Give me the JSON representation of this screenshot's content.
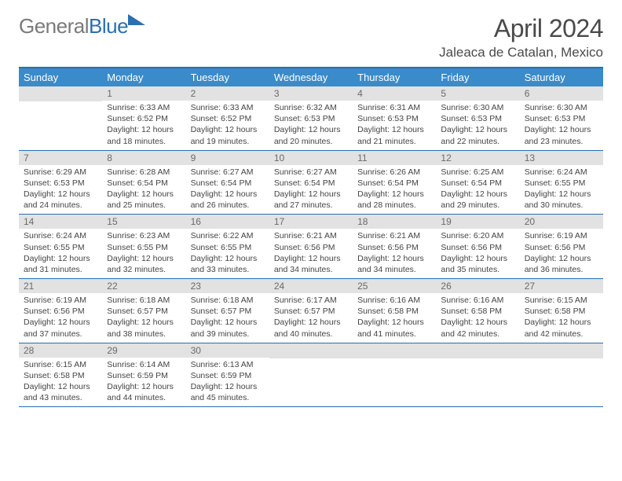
{
  "logo": {
    "text1": "General",
    "text2": "Blue"
  },
  "title": "April 2024",
  "location": "Jaleaca de Catalan, Mexico",
  "colors": {
    "header_bar": "#3a8bc9",
    "border": "#2a6fb0",
    "day_num_bg": "#e2e2e2",
    "day_num_fg": "#6a6a6a",
    "text": "#444444",
    "logo_gray": "#7a7a7a",
    "logo_blue": "#2a6fb0"
  },
  "weekdays": [
    "Sunday",
    "Monday",
    "Tuesday",
    "Wednesday",
    "Thursday",
    "Friday",
    "Saturday"
  ],
  "weeks": [
    [
      {
        "n": "",
        "sunrise": "",
        "sunset": "",
        "daylight": ""
      },
      {
        "n": "1",
        "sunrise": "Sunrise: 6:33 AM",
        "sunset": "Sunset: 6:52 PM",
        "daylight": "Daylight: 12 hours and 18 minutes."
      },
      {
        "n": "2",
        "sunrise": "Sunrise: 6:33 AM",
        "sunset": "Sunset: 6:52 PM",
        "daylight": "Daylight: 12 hours and 19 minutes."
      },
      {
        "n": "3",
        "sunrise": "Sunrise: 6:32 AM",
        "sunset": "Sunset: 6:53 PM",
        "daylight": "Daylight: 12 hours and 20 minutes."
      },
      {
        "n": "4",
        "sunrise": "Sunrise: 6:31 AM",
        "sunset": "Sunset: 6:53 PM",
        "daylight": "Daylight: 12 hours and 21 minutes."
      },
      {
        "n": "5",
        "sunrise": "Sunrise: 6:30 AM",
        "sunset": "Sunset: 6:53 PM",
        "daylight": "Daylight: 12 hours and 22 minutes."
      },
      {
        "n": "6",
        "sunrise": "Sunrise: 6:30 AM",
        "sunset": "Sunset: 6:53 PM",
        "daylight": "Daylight: 12 hours and 23 minutes."
      }
    ],
    [
      {
        "n": "7",
        "sunrise": "Sunrise: 6:29 AM",
        "sunset": "Sunset: 6:53 PM",
        "daylight": "Daylight: 12 hours and 24 minutes."
      },
      {
        "n": "8",
        "sunrise": "Sunrise: 6:28 AM",
        "sunset": "Sunset: 6:54 PM",
        "daylight": "Daylight: 12 hours and 25 minutes."
      },
      {
        "n": "9",
        "sunrise": "Sunrise: 6:27 AM",
        "sunset": "Sunset: 6:54 PM",
        "daylight": "Daylight: 12 hours and 26 minutes."
      },
      {
        "n": "10",
        "sunrise": "Sunrise: 6:27 AM",
        "sunset": "Sunset: 6:54 PM",
        "daylight": "Daylight: 12 hours and 27 minutes."
      },
      {
        "n": "11",
        "sunrise": "Sunrise: 6:26 AM",
        "sunset": "Sunset: 6:54 PM",
        "daylight": "Daylight: 12 hours and 28 minutes."
      },
      {
        "n": "12",
        "sunrise": "Sunrise: 6:25 AM",
        "sunset": "Sunset: 6:54 PM",
        "daylight": "Daylight: 12 hours and 29 minutes."
      },
      {
        "n": "13",
        "sunrise": "Sunrise: 6:24 AM",
        "sunset": "Sunset: 6:55 PM",
        "daylight": "Daylight: 12 hours and 30 minutes."
      }
    ],
    [
      {
        "n": "14",
        "sunrise": "Sunrise: 6:24 AM",
        "sunset": "Sunset: 6:55 PM",
        "daylight": "Daylight: 12 hours and 31 minutes."
      },
      {
        "n": "15",
        "sunrise": "Sunrise: 6:23 AM",
        "sunset": "Sunset: 6:55 PM",
        "daylight": "Daylight: 12 hours and 32 minutes."
      },
      {
        "n": "16",
        "sunrise": "Sunrise: 6:22 AM",
        "sunset": "Sunset: 6:55 PM",
        "daylight": "Daylight: 12 hours and 33 minutes."
      },
      {
        "n": "17",
        "sunrise": "Sunrise: 6:21 AM",
        "sunset": "Sunset: 6:56 PM",
        "daylight": "Daylight: 12 hours and 34 minutes."
      },
      {
        "n": "18",
        "sunrise": "Sunrise: 6:21 AM",
        "sunset": "Sunset: 6:56 PM",
        "daylight": "Daylight: 12 hours and 34 minutes."
      },
      {
        "n": "19",
        "sunrise": "Sunrise: 6:20 AM",
        "sunset": "Sunset: 6:56 PM",
        "daylight": "Daylight: 12 hours and 35 minutes."
      },
      {
        "n": "20",
        "sunrise": "Sunrise: 6:19 AM",
        "sunset": "Sunset: 6:56 PM",
        "daylight": "Daylight: 12 hours and 36 minutes."
      }
    ],
    [
      {
        "n": "21",
        "sunrise": "Sunrise: 6:19 AM",
        "sunset": "Sunset: 6:56 PM",
        "daylight": "Daylight: 12 hours and 37 minutes."
      },
      {
        "n": "22",
        "sunrise": "Sunrise: 6:18 AM",
        "sunset": "Sunset: 6:57 PM",
        "daylight": "Daylight: 12 hours and 38 minutes."
      },
      {
        "n": "23",
        "sunrise": "Sunrise: 6:18 AM",
        "sunset": "Sunset: 6:57 PM",
        "daylight": "Daylight: 12 hours and 39 minutes."
      },
      {
        "n": "24",
        "sunrise": "Sunrise: 6:17 AM",
        "sunset": "Sunset: 6:57 PM",
        "daylight": "Daylight: 12 hours and 40 minutes."
      },
      {
        "n": "25",
        "sunrise": "Sunrise: 6:16 AM",
        "sunset": "Sunset: 6:58 PM",
        "daylight": "Daylight: 12 hours and 41 minutes."
      },
      {
        "n": "26",
        "sunrise": "Sunrise: 6:16 AM",
        "sunset": "Sunset: 6:58 PM",
        "daylight": "Daylight: 12 hours and 42 minutes."
      },
      {
        "n": "27",
        "sunrise": "Sunrise: 6:15 AM",
        "sunset": "Sunset: 6:58 PM",
        "daylight": "Daylight: 12 hours and 42 minutes."
      }
    ],
    [
      {
        "n": "28",
        "sunrise": "Sunrise: 6:15 AM",
        "sunset": "Sunset: 6:58 PM",
        "daylight": "Daylight: 12 hours and 43 minutes."
      },
      {
        "n": "29",
        "sunrise": "Sunrise: 6:14 AM",
        "sunset": "Sunset: 6:59 PM",
        "daylight": "Daylight: 12 hours and 44 minutes."
      },
      {
        "n": "30",
        "sunrise": "Sunrise: 6:13 AM",
        "sunset": "Sunset: 6:59 PM",
        "daylight": "Daylight: 12 hours and 45 minutes."
      },
      {
        "n": "",
        "sunrise": "",
        "sunset": "",
        "daylight": ""
      },
      {
        "n": "",
        "sunrise": "",
        "sunset": "",
        "daylight": ""
      },
      {
        "n": "",
        "sunrise": "",
        "sunset": "",
        "daylight": ""
      },
      {
        "n": "",
        "sunrise": "",
        "sunset": "",
        "daylight": ""
      }
    ]
  ]
}
